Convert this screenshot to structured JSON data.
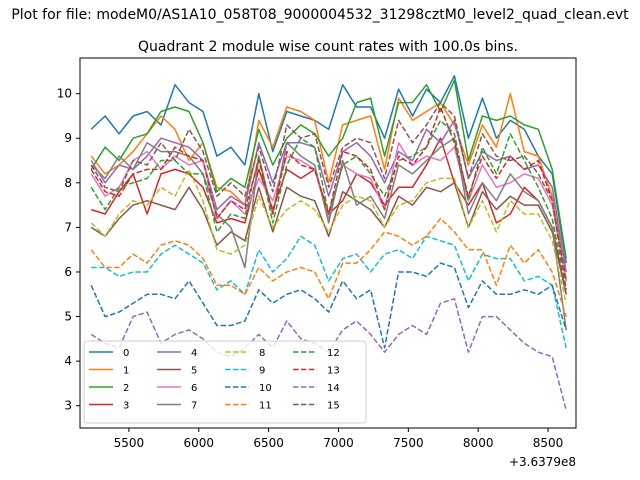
{
  "suptitle": "Plot for file: modeM0/AS1A10_058T08_9000004532_31298cztM0_level2_quad_clean.evt",
  "chart_data": {
    "type": "line",
    "title": "Quadrant 2 module wise count rates with 100.0s bins.",
    "xlabel": "",
    "ylabel": "",
    "x_offset_label": "+3.6379e8",
    "xlim": [
      5150,
      8700
    ],
    "ylim": [
      2.5,
      10.8
    ],
    "xticks": [
      5500,
      6000,
      6500,
      7000,
      7500,
      8000,
      8500
    ],
    "yticks": [
      3,
      4,
      5,
      6,
      7,
      8,
      9,
      10
    ],
    "grid": false,
    "legend_placement": "lower-left",
    "legend_columns": 4,
    "x": [
      5230,
      5330,
      5430,
      5530,
      5630,
      5730,
      5830,
      5930,
      6030,
      6130,
      6230,
      6330,
      6430,
      6530,
      6630,
      6730,
      6830,
      6930,
      7030,
      7130,
      7230,
      7330,
      7430,
      7530,
      7630,
      7730,
      7830,
      7930,
      8030,
      8130,
      8230,
      8330,
      8430,
      8530,
      8630
    ],
    "series": [
      {
        "name": "0",
        "color": "#1f77b4",
        "dash": "solid",
        "values": [
          9.2,
          9.5,
          9.1,
          9.5,
          9.6,
          9.3,
          10.2,
          9.8,
          9.6,
          8.6,
          8.8,
          8.4,
          10.0,
          8.7,
          9.6,
          9.5,
          9.4,
          9.2,
          10.2,
          9.7,
          9.7,
          9.0,
          10.1,
          9.5,
          10.1,
          9.8,
          10.4,
          9.0,
          9.9,
          9.0,
          9.4,
          9.2,
          8.6,
          8.2,
          6.2
        ]
      },
      {
        "name": "1",
        "color": "#ff7f0e",
        "dash": "solid",
        "values": [
          8.6,
          8.2,
          8.4,
          8.7,
          9.1,
          9.5,
          9.2,
          8.5,
          8.9,
          7.9,
          7.8,
          7.5,
          9.4,
          8.8,
          9.7,
          9.6,
          9.4,
          8.0,
          9.3,
          9.4,
          9.5,
          8.3,
          9.9,
          9.4,
          9.6,
          9.8,
          9.3,
          8.4,
          9.3,
          8.8,
          10.0,
          8.7,
          8.6,
          7.7,
          5.8
        ]
      },
      {
        "name": "2",
        "color": "#2ca02c",
        "dash": "solid",
        "values": [
          8.3,
          8.8,
          8.5,
          9.0,
          9.1,
          9.6,
          9.7,
          9.6,
          8.9,
          7.8,
          8.1,
          7.9,
          9.2,
          8.4,
          9.0,
          9.3,
          9.1,
          8.6,
          9.0,
          9.8,
          9.9,
          8.6,
          9.8,
          9.8,
          10.2,
          9.6,
          10.3,
          8.5,
          9.5,
          9.4,
          9.5,
          9.3,
          9.2,
          8.3,
          6.3
        ]
      },
      {
        "name": "3",
        "color": "#d62728",
        "dash": "solid",
        "values": [
          7.4,
          7.3,
          7.8,
          8.2,
          7.3,
          8.2,
          8.3,
          8.2,
          7.9,
          7.1,
          7.2,
          7.1,
          8.3,
          7.4,
          8.3,
          8.1,
          8.3,
          7.3,
          7.6,
          8.2,
          8.0,
          7.5,
          7.9,
          7.9,
          8.4,
          9.0,
          8.0,
          7.5,
          8.0,
          7.1,
          7.3,
          7.9,
          7.6,
          7.0,
          5.5
        ]
      },
      {
        "name": "4",
        "color": "#9467bd",
        "dash": "solid",
        "values": [
          8.5,
          8.0,
          8.4,
          8.3,
          8.6,
          9.0,
          8.9,
          8.8,
          8.5,
          7.4,
          7.7,
          7.5,
          8.9,
          8.0,
          8.9,
          8.9,
          8.8,
          7.7,
          8.7,
          8.9,
          8.6,
          8.0,
          8.7,
          8.5,
          9.2,
          8.9,
          9.4,
          8.1,
          8.7,
          8.5,
          8.6,
          8.3,
          8.4,
          7.9,
          6.0
        ]
      },
      {
        "name": "5",
        "color": "#8c564b",
        "dash": "solid",
        "values": [
          7.0,
          6.8,
          7.2,
          7.5,
          7.6,
          7.5,
          7.4,
          7.9,
          7.4,
          6.6,
          6.9,
          6.7,
          7.9,
          6.9,
          7.9,
          7.7,
          7.6,
          6.8,
          7.8,
          7.6,
          7.4,
          7.0,
          7.7,
          7.5,
          7.9,
          7.8,
          8.0,
          7.0,
          7.8,
          7.4,
          7.7,
          7.5,
          7.5,
          6.9,
          5.5
        ]
      },
      {
        "name": "6",
        "color": "#e377c2",
        "dash": "solid",
        "values": [
          8.2,
          7.7,
          7.9,
          8.5,
          8.7,
          8.3,
          8.6,
          8.4,
          8.5,
          7.2,
          7.6,
          7.3,
          8.1,
          7.6,
          8.6,
          8.5,
          8.3,
          7.2,
          8.4,
          8.2,
          8.1,
          7.4,
          8.9,
          8.4,
          8.6,
          8.5,
          8.8,
          7.6,
          8.4,
          7.9,
          8.0,
          8.2,
          8.1,
          7.5,
          5.8
        ]
      },
      {
        "name": "7",
        "color": "#7f7f7f",
        "dash": "solid",
        "values": [
          8.4,
          8.1,
          8.6,
          8.3,
          8.9,
          8.7,
          8.7,
          8.6,
          8.2,
          7.3,
          7.0,
          6.1,
          8.6,
          7.3,
          8.9,
          8.6,
          8.4,
          7.1,
          8.5,
          7.5,
          7.7,
          7.2,
          8.4,
          8.2,
          8.5,
          8.8,
          9.0,
          7.3,
          8.0,
          7.6,
          8.2,
          7.8,
          7.6,
          7.0,
          4.7
        ]
      },
      {
        "name": "8",
        "color": "#bcbd22",
        "dash": "dashed",
        "values": [
          7.1,
          6.8,
          7.3,
          7.6,
          7.5,
          7.9,
          7.7,
          8.3,
          7.6,
          6.5,
          6.4,
          6.6,
          7.7,
          7.0,
          7.4,
          7.6,
          7.4,
          6.9,
          7.5,
          7.7,
          7.6,
          7.0,
          7.5,
          7.6,
          8.0,
          8.1,
          8.1,
          7.0,
          7.6,
          6.9,
          7.6,
          7.3,
          7.3,
          6.7,
          5.3
        ]
      },
      {
        "name": "9",
        "color": "#17becf",
        "dash": "dashed",
        "values": [
          6.1,
          6.1,
          5.9,
          6.0,
          6.0,
          6.4,
          6.6,
          6.4,
          6.2,
          5.6,
          5.8,
          5.5,
          6.5,
          6.0,
          6.3,
          6.8,
          6.6,
          5.8,
          6.3,
          6.4,
          6.0,
          6.4,
          6.5,
          6.3,
          6.8,
          6.7,
          6.6,
          5.8,
          6.4,
          6.3,
          6.3,
          5.8,
          5.9,
          5.7,
          4.3
        ]
      },
      {
        "name": "10",
        "color": "#1f77b4",
        "dash": "dashed",
        "values": [
          5.7,
          5.0,
          5.1,
          5.3,
          5.5,
          5.5,
          5.4,
          5.8,
          5.3,
          4.8,
          4.8,
          4.9,
          5.6,
          5.3,
          5.5,
          5.6,
          5.4,
          5.1,
          5.8,
          5.4,
          5.6,
          4.3,
          6.0,
          6.0,
          5.9,
          6.2,
          6.1,
          5.2,
          5.8,
          5.5,
          5.5,
          5.6,
          5.5,
          5.7,
          4.7
        ]
      },
      {
        "name": "11",
        "color": "#ff7f0e",
        "dash": "dashed",
        "values": [
          6.5,
          6.1,
          6.1,
          6.4,
          6.2,
          6.6,
          6.7,
          6.6,
          6.3,
          5.7,
          5.7,
          5.5,
          6.1,
          5.8,
          6.0,
          6.1,
          6.0,
          5.4,
          6.2,
          6.2,
          6.5,
          6.9,
          6.8,
          6.6,
          6.8,
          7.2,
          6.9,
          6.5,
          6.5,
          5.7,
          6.6,
          6.2,
          6.5,
          6.0,
          5.0
        ]
      },
      {
        "name": "12",
        "color": "#2ca02c",
        "dash": "dashed",
        "values": [
          7.9,
          7.4,
          7.9,
          8.0,
          8.1,
          8.5,
          8.5,
          8.2,
          8.2,
          6.9,
          7.3,
          7.2,
          8.6,
          7.1,
          8.4,
          9.0,
          8.8,
          7.3,
          8.4,
          8.6,
          8.2,
          7.7,
          8.5,
          8.6,
          8.8,
          9.4,
          9.1,
          7.6,
          8.8,
          8.2,
          9.1,
          8.5,
          7.9,
          7.2,
          5.6
        ]
      },
      {
        "name": "13",
        "color": "#d62728",
        "dash": "dashed",
        "values": [
          8.3,
          7.8,
          7.7,
          8.2,
          8.3,
          8.3,
          8.8,
          8.6,
          8.5,
          7.2,
          7.6,
          7.4,
          8.5,
          7.3,
          8.7,
          8.4,
          8.3,
          7.3,
          8.7,
          8.6,
          8.3,
          7.4,
          8.6,
          8.4,
          8.8,
          9.7,
          8.9,
          7.7,
          8.6,
          8.1,
          8.6,
          8.3,
          8.5,
          7.6,
          5.8
        ]
      },
      {
        "name": "14",
        "color": "#9467bd",
        "dash": "dashed",
        "values": [
          4.6,
          4.4,
          4.3,
          5.0,
          5.1,
          4.4,
          4.6,
          4.7,
          4.5,
          4.2,
          4.1,
          4.3,
          4.6,
          4.3,
          4.9,
          4.5,
          4.4,
          4.2,
          4.7,
          4.9,
          4.6,
          4.2,
          4.6,
          4.8,
          4.6,
          5.3,
          5.4,
          4.2,
          5.0,
          5.0,
          4.7,
          4.4,
          4.2,
          4.1,
          2.9
        ]
      },
      {
        "name": "15",
        "color": "#8c564b",
        "dash": "dashed",
        "values": [
          8.4,
          7.9,
          7.8,
          8.5,
          8.4,
          8.9,
          8.5,
          9.2,
          8.7,
          7.7,
          8.0,
          7.7,
          8.8,
          7.8,
          9.3,
          9.0,
          9.1,
          7.9,
          8.8,
          9.0,
          8.9,
          8.1,
          9.4,
          8.9,
          9.3,
          9.8,
          9.5,
          8.1,
          9.1,
          8.6,
          8.5,
          8.6,
          8.2,
          7.6,
          5.6
        ]
      }
    ]
  }
}
